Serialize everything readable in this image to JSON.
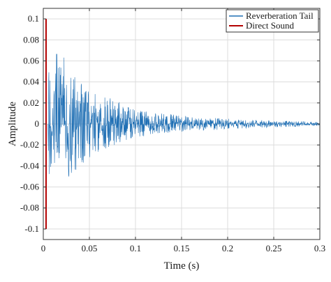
{
  "chart_data": {
    "type": "line",
    "xlabel": "Time (s)",
    "ylabel": "Amplitude",
    "xlim": [
      0,
      0.3
    ],
    "ylim": [
      -0.11,
      0.11
    ],
    "xticks": [
      0,
      0.05,
      0.1,
      0.15,
      0.2,
      0.25,
      0.3
    ],
    "xtick_labels": [
      "0",
      "0.05",
      "0.1",
      "0.15",
      "0.2",
      "0.25",
      "0.3"
    ],
    "yticks": [
      -0.1,
      -0.08,
      -0.06,
      -0.04,
      -0.02,
      0,
      0.02,
      0.04,
      0.06,
      0.08,
      0.1
    ],
    "ytick_labels": [
      "-0.1",
      "-0.08",
      "-0.06",
      "-0.04",
      "-0.02",
      "0",
      "0.02",
      "0.04",
      "0.06",
      "0.08",
      "0.1"
    ],
    "grid": true,
    "legend_position": "top-right",
    "series": [
      {
        "name": "Reverberation Tail",
        "color": "#1f6fb4",
        "envelope": {
          "t": [
            0.005,
            0.006,
            0.007,
            0.008,
            0.01,
            0.012,
            0.015,
            0.018,
            0.02,
            0.022,
            0.025,
            0.028,
            0.03,
            0.035,
            0.04,
            0.045,
            0.05,
            0.06,
            0.07,
            0.08,
            0.09,
            0.1,
            0.12,
            0.14,
            0.16,
            0.18,
            0.2,
            0.22,
            0.24,
            0.26,
            0.28,
            0.3
          ],
          "upper": [
            0.0,
            0.05,
            0.045,
            0.04,
            0.052,
            0.06,
            0.07,
            0.062,
            0.058,
            0.065,
            0.06,
            0.055,
            0.05,
            0.045,
            0.04,
            0.035,
            0.033,
            0.03,
            0.026,
            0.022,
            0.017,
            0.013,
            0.011,
            0.009,
            0.007,
            0.006,
            0.005,
            0.004,
            0.0035,
            0.003,
            0.0025,
            0.002
          ],
          "lower": [
            0.0,
            -0.06,
            -0.05,
            -0.045,
            -0.05,
            -0.055,
            -0.065,
            -0.062,
            -0.06,
            -0.058,
            -0.056,
            -0.05,
            -0.048,
            -0.044,
            -0.042,
            -0.036,
            -0.032,
            -0.028,
            -0.025,
            -0.02,
            -0.016,
            -0.013,
            -0.01,
            -0.008,
            -0.007,
            -0.006,
            -0.005,
            -0.004,
            -0.0035,
            -0.003,
            -0.0025,
            -0.002
          ]
        }
      },
      {
        "name": "Direct Sound",
        "color": "#b30000",
        "x": [
          0.003,
          0.003
        ],
        "y": [
          -0.1,
          0.1
        ]
      }
    ]
  }
}
